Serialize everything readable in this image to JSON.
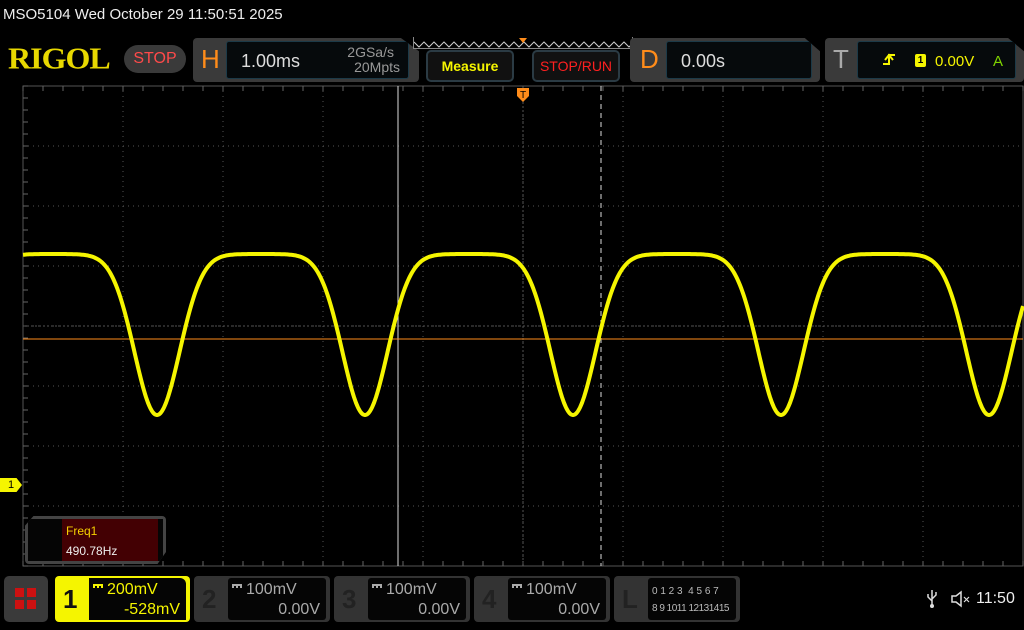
{
  "header": {
    "title": "MSO5104  Wed October 29 11:50:51 2025",
    "logo": "RIGOL",
    "run_state": "STOP"
  },
  "horizontal": {
    "label": "H",
    "timebase": "1.00ms",
    "sample_rate": "2GSa/s",
    "memory_depth": "20Mpts"
  },
  "buttons": {
    "measure": "Measure",
    "stop_run": "STOP/RUN"
  },
  "delay": {
    "label": "D",
    "value": "0.00s"
  },
  "trigger": {
    "label": "T",
    "slope_icon": "rising-edge-icon",
    "source": "1",
    "level": "0.00V",
    "mode": "A"
  },
  "measurement": {
    "name": "Freq1",
    "value": "490.78Hz"
  },
  "channel_marker": "1",
  "channels": [
    {
      "num": "1",
      "scale": "200mV",
      "offset": "-528mV",
      "active": true,
      "color": "#f5f500"
    },
    {
      "num": "2",
      "scale": "100mV",
      "offset": "0.00V",
      "active": false
    },
    {
      "num": "3",
      "scale": "100mV",
      "offset": "0.00V",
      "active": false
    },
    {
      "num": "4",
      "scale": "100mV",
      "offset": "0.00V",
      "active": false
    }
  ],
  "logic": {
    "label": "L",
    "row1": "0 1 2 3  4 5 6 7",
    "row2": "8 9 1011 12131415"
  },
  "status": {
    "usb_icon": "usb-icon",
    "sound_icon": "mute-icon",
    "time": "11:50"
  },
  "colors": {
    "ch1": "#f5f500",
    "trigger": "#ff8c1a",
    "accent": "#ff8c1a"
  }
}
